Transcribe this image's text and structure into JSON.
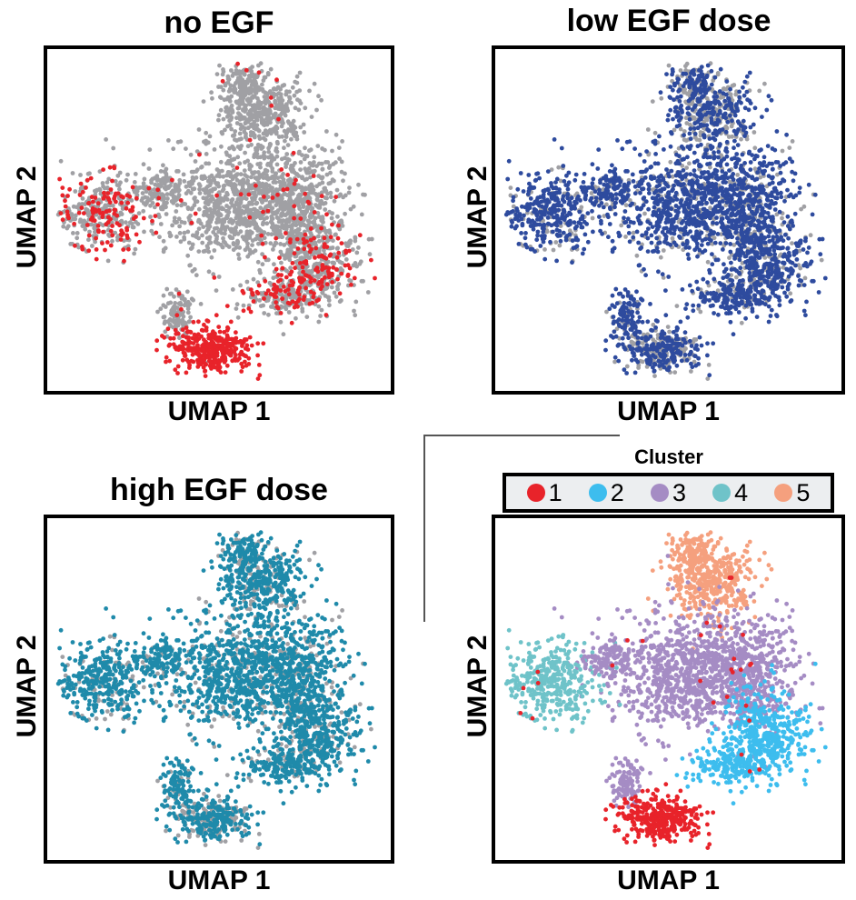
{
  "chart_data": [
    {
      "type": "scatter",
      "title": "no EGF",
      "xlabel": "UMAP 1",
      "ylabel": "UMAP 2",
      "highlight_color": "#e8232a",
      "background_color": "#a0a0a4",
      "highlighted_regions": [
        "left lobe",
        "bottom cluster",
        "lower-right rim"
      ]
    },
    {
      "type": "scatter",
      "title": "low EGF dose",
      "xlabel": "UMAP 1",
      "ylabel": "UMAP 2",
      "highlight_color": "#2e4b9e",
      "background_color": "#a0a0a4",
      "highlighted_regions": [
        "most cells"
      ]
    },
    {
      "type": "scatter",
      "title": "high EGF dose",
      "xlabel": "UMAP 1",
      "ylabel": "UMAP 2",
      "highlight_color": "#1f8aaa",
      "background_color": "#a0a0a4",
      "highlighted_regions": [
        "most cells"
      ]
    },
    {
      "type": "scatter",
      "title": "",
      "xlabel": "UMAP 1",
      "ylabel": "UMAP 2",
      "legend_title": "Cluster",
      "legend_position": "top",
      "series": [
        {
          "name": "1",
          "color": "#e8232a"
        },
        {
          "name": "2",
          "color": "#3dbdee"
        },
        {
          "name": "3",
          "color": "#a58cc4"
        },
        {
          "name": "4",
          "color": "#6fc3c9"
        },
        {
          "name": "5",
          "color": "#f5a07e"
        }
      ]
    }
  ]
}
